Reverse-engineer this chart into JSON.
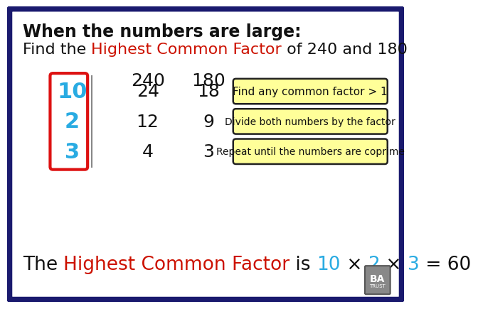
{
  "bg_color": "#ffffff",
  "border_color": "#1a1a6e",
  "title_bold": "When the numbers are large:",
  "sub_plain1": "Find the ",
  "sub_red": "Highest Common Factor",
  "sub_plain2": " of 240 and 180",
  "col1_header": "240",
  "col2_header": "180",
  "factors": [
    "10",
    "2",
    "3"
  ],
  "factor_color": "#29abe2",
  "factor_box_color": "#dd1111",
  "col1_values": [
    "24",
    "12",
    "4"
  ],
  "col2_values": [
    "18",
    "9",
    "3"
  ],
  "hint1": "Find any common factor > 1",
  "hint2": "Divide both numbers by the factor",
  "hint3": "Repeat until the numbers are coprime",
  "hint_bg": "#ffff99",
  "hint_border": "#222222",
  "red_color": "#cc1100",
  "cyan_color": "#29abe2",
  "text_color": "#111111",
  "bottom_parts": [
    {
      "text": "The ",
      "color": "#111111",
      "bold": false
    },
    {
      "text": "Highest Common Factor",
      "color": "#cc1100",
      "bold": false
    },
    {
      "text": " is ",
      "color": "#111111",
      "bold": false
    },
    {
      "text": "10",
      "color": "#29abe2",
      "bold": false
    },
    {
      "text": " × ",
      "color": "#111111",
      "bold": false
    },
    {
      "text": "2",
      "color": "#29abe2",
      "bold": false
    },
    {
      "text": " × ",
      "color": "#111111",
      "bold": false
    },
    {
      "text": "3",
      "color": "#29abe2",
      "bold": false
    },
    {
      "text": " = 60",
      "color": "#111111",
      "bold": false
    }
  ]
}
